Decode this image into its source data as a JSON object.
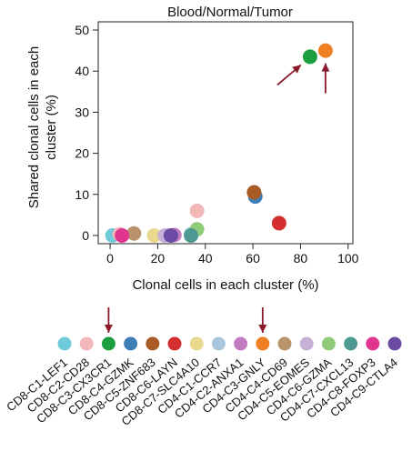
{
  "chart_data": {
    "type": "scatter",
    "title": "Blood/Normal/Tumor",
    "xlabel": "Clonal cells in each cluster (%)",
    "ylabel_lines": [
      "Shared clonal cells in each",
      "cluster (%)"
    ],
    "xlim": [
      -5,
      102
    ],
    "ylim": [
      -2,
      52
    ],
    "xticks": [
      0,
      20,
      40,
      60,
      80,
      100
    ],
    "yticks": [
      0,
      10,
      20,
      30,
      40,
      50
    ],
    "grid": false,
    "points": [
      {
        "cluster": "CD8-C1-LEF1",
        "x": 1.0,
        "y": 0.0
      },
      {
        "cluster": "CD8-C2-CD28",
        "x": 4.0,
        "y": 0.3
      },
      {
        "cluster": "CD8-C3-CX3CR1",
        "x": 84.0,
        "y": 43.5
      },
      {
        "cluster": "CD8-C4-GZMK",
        "x": 61.0,
        "y": 9.5
      },
      {
        "cluster": "CD8-C5-ZNF683",
        "x": 60.5,
        "y": 10.5
      },
      {
        "cluster": "CD8-C6-LAYN",
        "x": 71.0,
        "y": 3.0
      },
      {
        "cluster": "CD8-C7-SLC4A10",
        "x": 18.5,
        "y": 0.0
      },
      {
        "cluster": "CD4-C1-CCR7",
        "x": 34.0,
        "y": 0.3
      },
      {
        "cluster": "CD4-C2-ANXA1",
        "x": 27.0,
        "y": 0.1
      },
      {
        "cluster": "CD4-C3-GNLY",
        "x": 90.5,
        "y": 45.0
      },
      {
        "cluster": "CD4-C4-CD69",
        "x": 10.0,
        "y": 0.5
      },
      {
        "cluster": "CD4-C5-EOMES",
        "x": 23.0,
        "y": 0.0
      },
      {
        "cluster": "CD4-C6-GZMA",
        "x": 36.5,
        "y": 1.5
      },
      {
        "cluster": "CD4-C7-CXCL13",
        "x": 34.0,
        "y": 0.0
      },
      {
        "cluster": "CD4-C8-FOXP3",
        "x": 5.0,
        "y": 0.0
      },
      {
        "cluster": "CD4-C9-CTLA4",
        "x": 25.5,
        "y": 0.0
      },
      {
        "cluster": "CD8-C2-CD28",
        "x": 36.5,
        "y": 6.0
      }
    ],
    "highlighted_clusters": [
      "CD8-C3-CX3CR1",
      "CD4-C3-GNLY"
    ],
    "legend": {
      "placement": "bottom",
      "entries": [
        {
          "label": "CD8-C1-LEF1",
          "color": "#6ec9d8"
        },
        {
          "label": "CD8-C2-CD28",
          "color": "#f2b7b8"
        },
        {
          "label": "CD8-C3-CX3CR1",
          "color": "#1b9e3f"
        },
        {
          "label": "CD8-C4-GZMK",
          "color": "#3f7fb8"
        },
        {
          "label": "CD8-C5-ZNF683",
          "color": "#a95a25"
        },
        {
          "label": "CD8-C6-LAYN",
          "color": "#d32f2f"
        },
        {
          "label": "CD8-C7-SLC4A10",
          "color": "#e8d98c"
        },
        {
          "label": "CD4-C1-CCR7",
          "color": "#a8c7dc"
        },
        {
          "label": "CD4-C2-ANXA1",
          "color": "#c27bc0"
        },
        {
          "label": "CD4-C3-GNLY",
          "color": "#ef7f22"
        },
        {
          "label": "CD4-C4-CD69",
          "color": "#b8936b"
        },
        {
          "label": "CD4-C5-EOMES",
          "color": "#c6b0d6"
        },
        {
          "label": "CD4-C6-GZMA",
          "color": "#8fcc7a"
        },
        {
          "label": "CD4-C7-CXCL13",
          "color": "#4e9a93"
        },
        {
          "label": "CD4-C8-FOXP3",
          "color": "#e0358f"
        },
        {
          "label": "CD4-C9-CTLA4",
          "color": "#6b4ba3"
        }
      ]
    },
    "arrow_color": "#8b1a2b"
  }
}
